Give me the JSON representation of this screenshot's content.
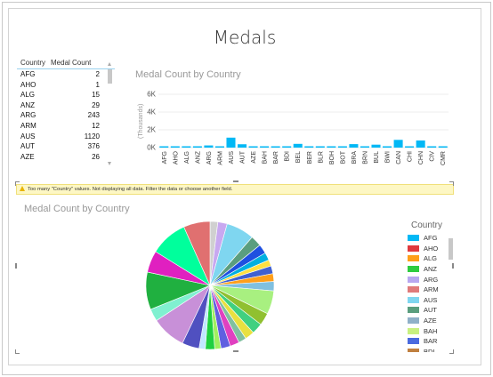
{
  "page": {
    "title": "Medals"
  },
  "table": {
    "headers": {
      "country": "Country",
      "count": "Medal Count"
    },
    "rows": [
      {
        "country": "AFG",
        "count": "2"
      },
      {
        "country": "AHO",
        "count": "1"
      },
      {
        "country": "ALG",
        "count": "15"
      },
      {
        "country": "ANZ",
        "count": "29"
      },
      {
        "country": "ARG",
        "count": "243"
      },
      {
        "country": "ARM",
        "count": "12"
      },
      {
        "country": "AUS",
        "count": "1120"
      },
      {
        "country": "AUT",
        "count": "376"
      },
      {
        "country": "AZE",
        "count": "26"
      }
    ]
  },
  "bar_chart": {
    "title": "Medal Count by Country",
    "y_axis_label": "(Thousands)",
    "y_ticks": [
      "6K",
      "4K",
      "2K",
      "0K"
    ]
  },
  "warning": {
    "text": "Too many \"Country\" values.  Not displaying all data. Filter the data or choose another field."
  },
  "pie_chart": {
    "title": "Medal Count by Country"
  },
  "legend": {
    "title": "Country",
    "items": [
      {
        "label": "AFG",
        "color": "#01b8f5"
      },
      {
        "label": "AHO",
        "color": "#e0393e"
      },
      {
        "label": "ALG",
        "color": "#ff9f1a"
      },
      {
        "label": "ANZ",
        "color": "#2ecc40"
      },
      {
        "label": "ARG",
        "color": "#b8a7f0"
      },
      {
        "label": "ARM",
        "color": "#e07a7a"
      },
      {
        "label": "AUS",
        "color": "#7fd6f0"
      },
      {
        "label": "AUT",
        "color": "#5a9e7e"
      },
      {
        "label": "AZE",
        "color": "#8fb0c8"
      },
      {
        "label": "BAH",
        "color": "#c8f080"
      },
      {
        "label": "BAR",
        "color": "#4a6adf"
      },
      {
        "label": "BDI",
        "color": "#c08040"
      }
    ]
  },
  "chart_data": [
    {
      "type": "bar",
      "title": "Medal Count by Country",
      "ylabel": "(Thousands)",
      "ylim": [
        0,
        6000
      ],
      "y_ticks": [
        "6K",
        "4K",
        "2K",
        "0K"
      ],
      "grid": true,
      "categories": [
        "AFG",
        "AHO",
        "ALG",
        "ANZ",
        "ARG",
        "ARM",
        "AUS",
        "AUT",
        "AZE",
        "BAH",
        "BAR",
        "BDI",
        "BEL",
        "BER",
        "BLR",
        "BOH",
        "BOT",
        "BRA",
        "BRN",
        "BUL",
        "BWI",
        "CAN",
        "CHI",
        "CHN",
        "CIV",
        "CMR"
      ],
      "values": [
        2,
        1,
        15,
        29,
        243,
        12,
        1120,
        376,
        26,
        10,
        3,
        1,
        420,
        5,
        130,
        15,
        1,
        390,
        5,
        330,
        40,
        870,
        30,
        800,
        1,
        25
      ],
      "color": "#01b8f5"
    },
    {
      "type": "pie",
      "title": "Medal Count by Country",
      "legend_position": "right",
      "categories": [
        "AFG",
        "AHO",
        "ALG",
        "ANZ",
        "ARG",
        "ARM",
        "AUS",
        "AUT",
        "AZE",
        "BAH",
        "BAR",
        "BDI"
      ],
      "colors": [
        "#01b8f5",
        "#e0393e",
        "#ff9f1a",
        "#2ecc40",
        "#b8a7f0",
        "#e07a7a",
        "#7fd6f0",
        "#5a9e7e",
        "#8fb0c8",
        "#c8f080",
        "#4a6adf",
        "#c08040",
        "#2c3e50",
        "#f27ac8",
        "#00e5a0",
        "#a0e060",
        "#1fb060",
        "#e020c0",
        "#1e90c8",
        "#7fffd4",
        "#d0a0e0",
        "#6a5acd",
        "#f0c000",
        "#22c55e"
      ],
      "slices": [
        {
          "value": 2.5,
          "color": "#d0d0d0"
        },
        {
          "value": 3.0,
          "color": "#c8a8f0"
        },
        {
          "value": 9.0,
          "color": "#7fd6f0"
        },
        {
          "value": 3.5,
          "color": "#5a9e7e"
        },
        {
          "value": 3.0,
          "color": "#1e50e0"
        },
        {
          "value": 2.5,
          "color": "#00b0e0"
        },
        {
          "value": 2.0,
          "color": "#ffe040"
        },
        {
          "value": 2.5,
          "color": "#4060d0"
        },
        {
          "value": 2.5,
          "color": "#ff9f1a"
        },
        {
          "value": 3.0,
          "color": "#80c0e0"
        },
        {
          "value": 7.5,
          "color": "#a8f080"
        },
        {
          "value": 4.0,
          "color": "#90c030"
        },
        {
          "value": 3.5,
          "color": "#40d080"
        },
        {
          "value": 3.0,
          "color": "#e8e040"
        },
        {
          "value": 2.5,
          "color": "#80c0a0"
        },
        {
          "value": 3.0,
          "color": "#e040c0"
        },
        {
          "value": 3.0,
          "color": "#6060e0"
        },
        {
          "value": 2.0,
          "color": "#a0f060"
        },
        {
          "value": 3.0,
          "color": "#20d040"
        },
        {
          "value": 2.0,
          "color": "#c0e8ff"
        },
        {
          "value": 5.5,
          "color": "#5050c0"
        },
        {
          "value": 11.0,
          "color": "#c890d8"
        },
        {
          "value": 4.0,
          "color": "#80f0d0"
        },
        {
          "value": 12.0,
          "color": "#20b040"
        },
        {
          "value": 7.0,
          "color": "#e020c0"
        },
        {
          "value": 12.0,
          "color": "#00ff9c"
        },
        {
          "value": 8.5,
          "color": "#e07070"
        }
      ]
    }
  ]
}
